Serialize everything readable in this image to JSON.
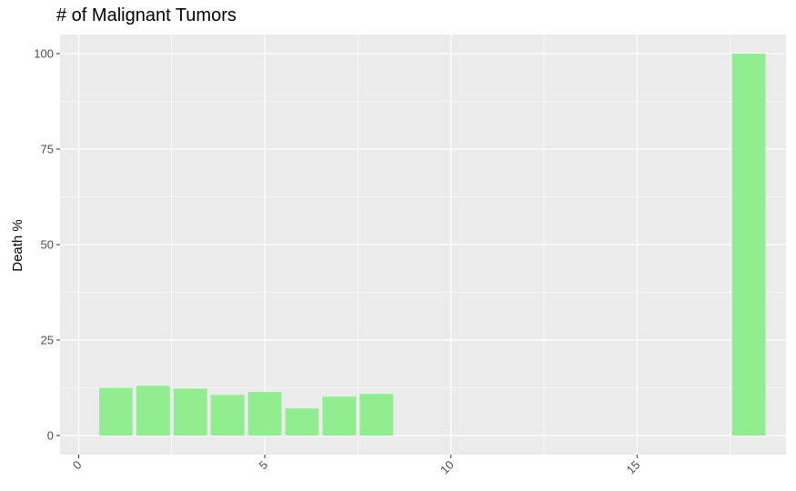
{
  "chart_data": {
    "type": "bar",
    "title": "# of Malignant Tumors",
    "xlabel": "",
    "ylabel": "Death %",
    "x": [
      1,
      2,
      3,
      4,
      5,
      6,
      7,
      8,
      18
    ],
    "values": [
      12.5,
      13.0,
      12.3,
      10.6,
      11.4,
      7.1,
      10.2,
      10.9,
      100
    ],
    "xlim": [
      -0.5,
      19.0
    ],
    "ylim": [
      -5,
      105
    ],
    "x_ticks": [
      0,
      5,
      10,
      15
    ],
    "x_tick_labels": [
      "0",
      "5",
      "10",
      "15"
    ],
    "y_ticks": [
      0,
      25,
      50,
      75,
      100
    ],
    "y_tick_labels": [
      "0",
      "25",
      "50",
      "75",
      "100"
    ],
    "grid": true,
    "colors": {
      "bar": "#90EE90",
      "panel": "#EBEBEB",
      "grid_major": "#FFFFFF",
      "tick_text": "#4D4D4D",
      "tick_mark": "#333333"
    }
  }
}
